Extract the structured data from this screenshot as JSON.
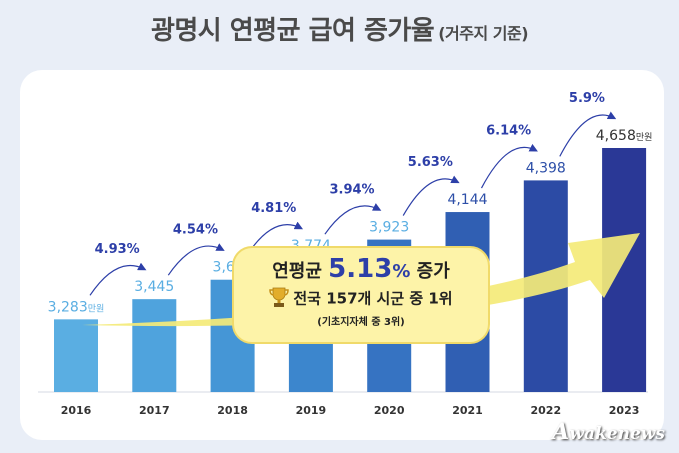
{
  "header": {
    "title": "광명시 연평균 급여 증가율",
    "subtitle": "(거주지 기준)"
  },
  "chart_data": {
    "type": "bar",
    "title": "광명시 연평균 급여 증가율 (거주지 기준)",
    "categories": [
      "2016",
      "2017",
      "2018",
      "2019",
      "2020",
      "2021",
      "2022",
      "2023"
    ],
    "values": [
      3283,
      3445,
      3601,
      3774,
      3923,
      4144,
      4398,
      4658
    ],
    "value_labels": [
      "3,283만원",
      "3,445",
      "3,601",
      "3,774",
      "3,923",
      "4,144",
      "4,398",
      "4,658만원"
    ],
    "growth_rates": [
      "4.93%",
      "4.54%",
      "4.81%",
      "3.94%",
      "5.63%",
      "6.14%",
      "5.9%"
    ],
    "unit": "만원",
    "colors": [
      "#5aaee2",
      "#4fa3dd",
      "#4596d6",
      "#3c86cd",
      "#3673c2",
      "#305fb3",
      "#2c4ba5",
      "#2a3896"
    ],
    "accent_color": "#2d3fa8",
    "arrow_color": "#f4ea78"
  },
  "callout": {
    "line1_prefix": "연평균",
    "line1_value": "5.13",
    "line1_pct": "%",
    "line1_suffix": "증가",
    "line2": "전국 157개 시군 중 1위",
    "line3": "(기초지자체 중 3위)",
    "icon": "trophy-icon"
  },
  "watermark": {
    "initial": "A",
    "rest": "wakenews"
  }
}
